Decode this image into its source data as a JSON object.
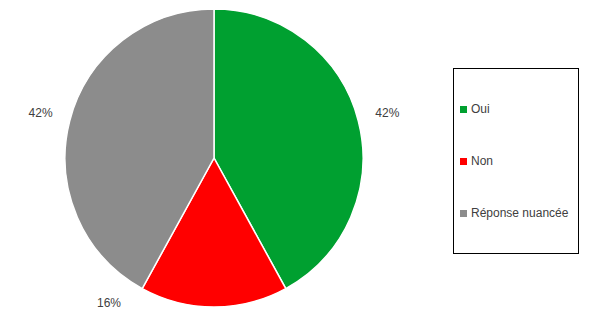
{
  "chart_data": {
    "type": "pie",
    "categories": [
      "Oui",
      "Non",
      "Réponse nuancée"
    ],
    "values": [
      42,
      16,
      42
    ],
    "value_labels": [
      "42%",
      "16%",
      "42%"
    ],
    "colors": [
      "#00a030",
      "#ff0000",
      "#8c8c8c"
    ],
    "data_labels": true,
    "legend": "right"
  }
}
